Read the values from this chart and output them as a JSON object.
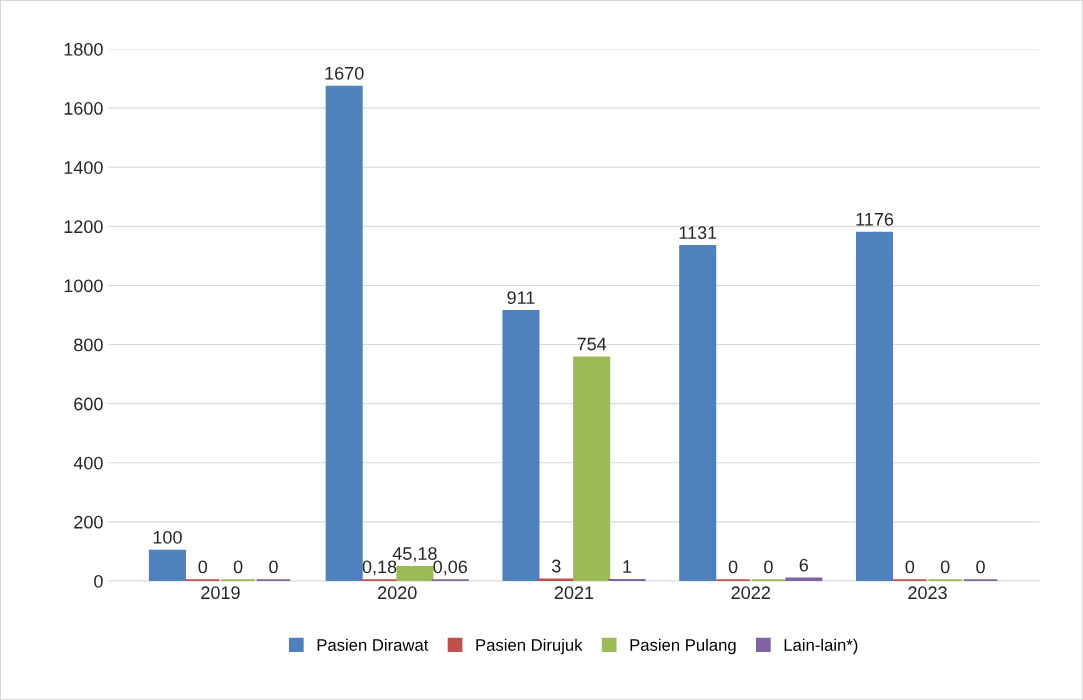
{
  "chart_data": {
    "type": "bar",
    "categories": [
      "2019",
      "2020",
      "2021",
      "2022",
      "2023"
    ],
    "series": [
      {
        "name": "Pasien Dirawat",
        "color": "#4f81bd",
        "values": [
          100,
          1670,
          911,
          1131,
          1176
        ],
        "value_labels": [
          "100",
          "1670",
          "911",
          "1131",
          "1176"
        ]
      },
      {
        "name": "Pasien Dirujuk",
        "color": "#c0504d",
        "values": [
          0,
          0.18,
          3,
          0,
          0
        ],
        "value_labels": [
          "0",
          "0,18",
          "3",
          "0",
          "0"
        ]
      },
      {
        "name": "Pasien Pulang",
        "color": "#9bbb59",
        "values": [
          0,
          45.18,
          754,
          0,
          0
        ],
        "value_labels": [
          "0",
          "45,18",
          "754",
          "0",
          "0"
        ]
      },
      {
        "name": "Lain-lain*)",
        "color": "#8064a2",
        "values": [
          0,
          0.06,
          1,
          6,
          0
        ],
        "value_labels": [
          "0",
          "0,06",
          "1",
          "6",
          "0"
        ]
      }
    ],
    "ylim": [
      0,
      1800
    ],
    "yticks": [
      0,
      200,
      400,
      600,
      800,
      1000,
      1200,
      1400,
      1600,
      1800
    ],
    "grid": "y",
    "legend": "bottom"
  }
}
